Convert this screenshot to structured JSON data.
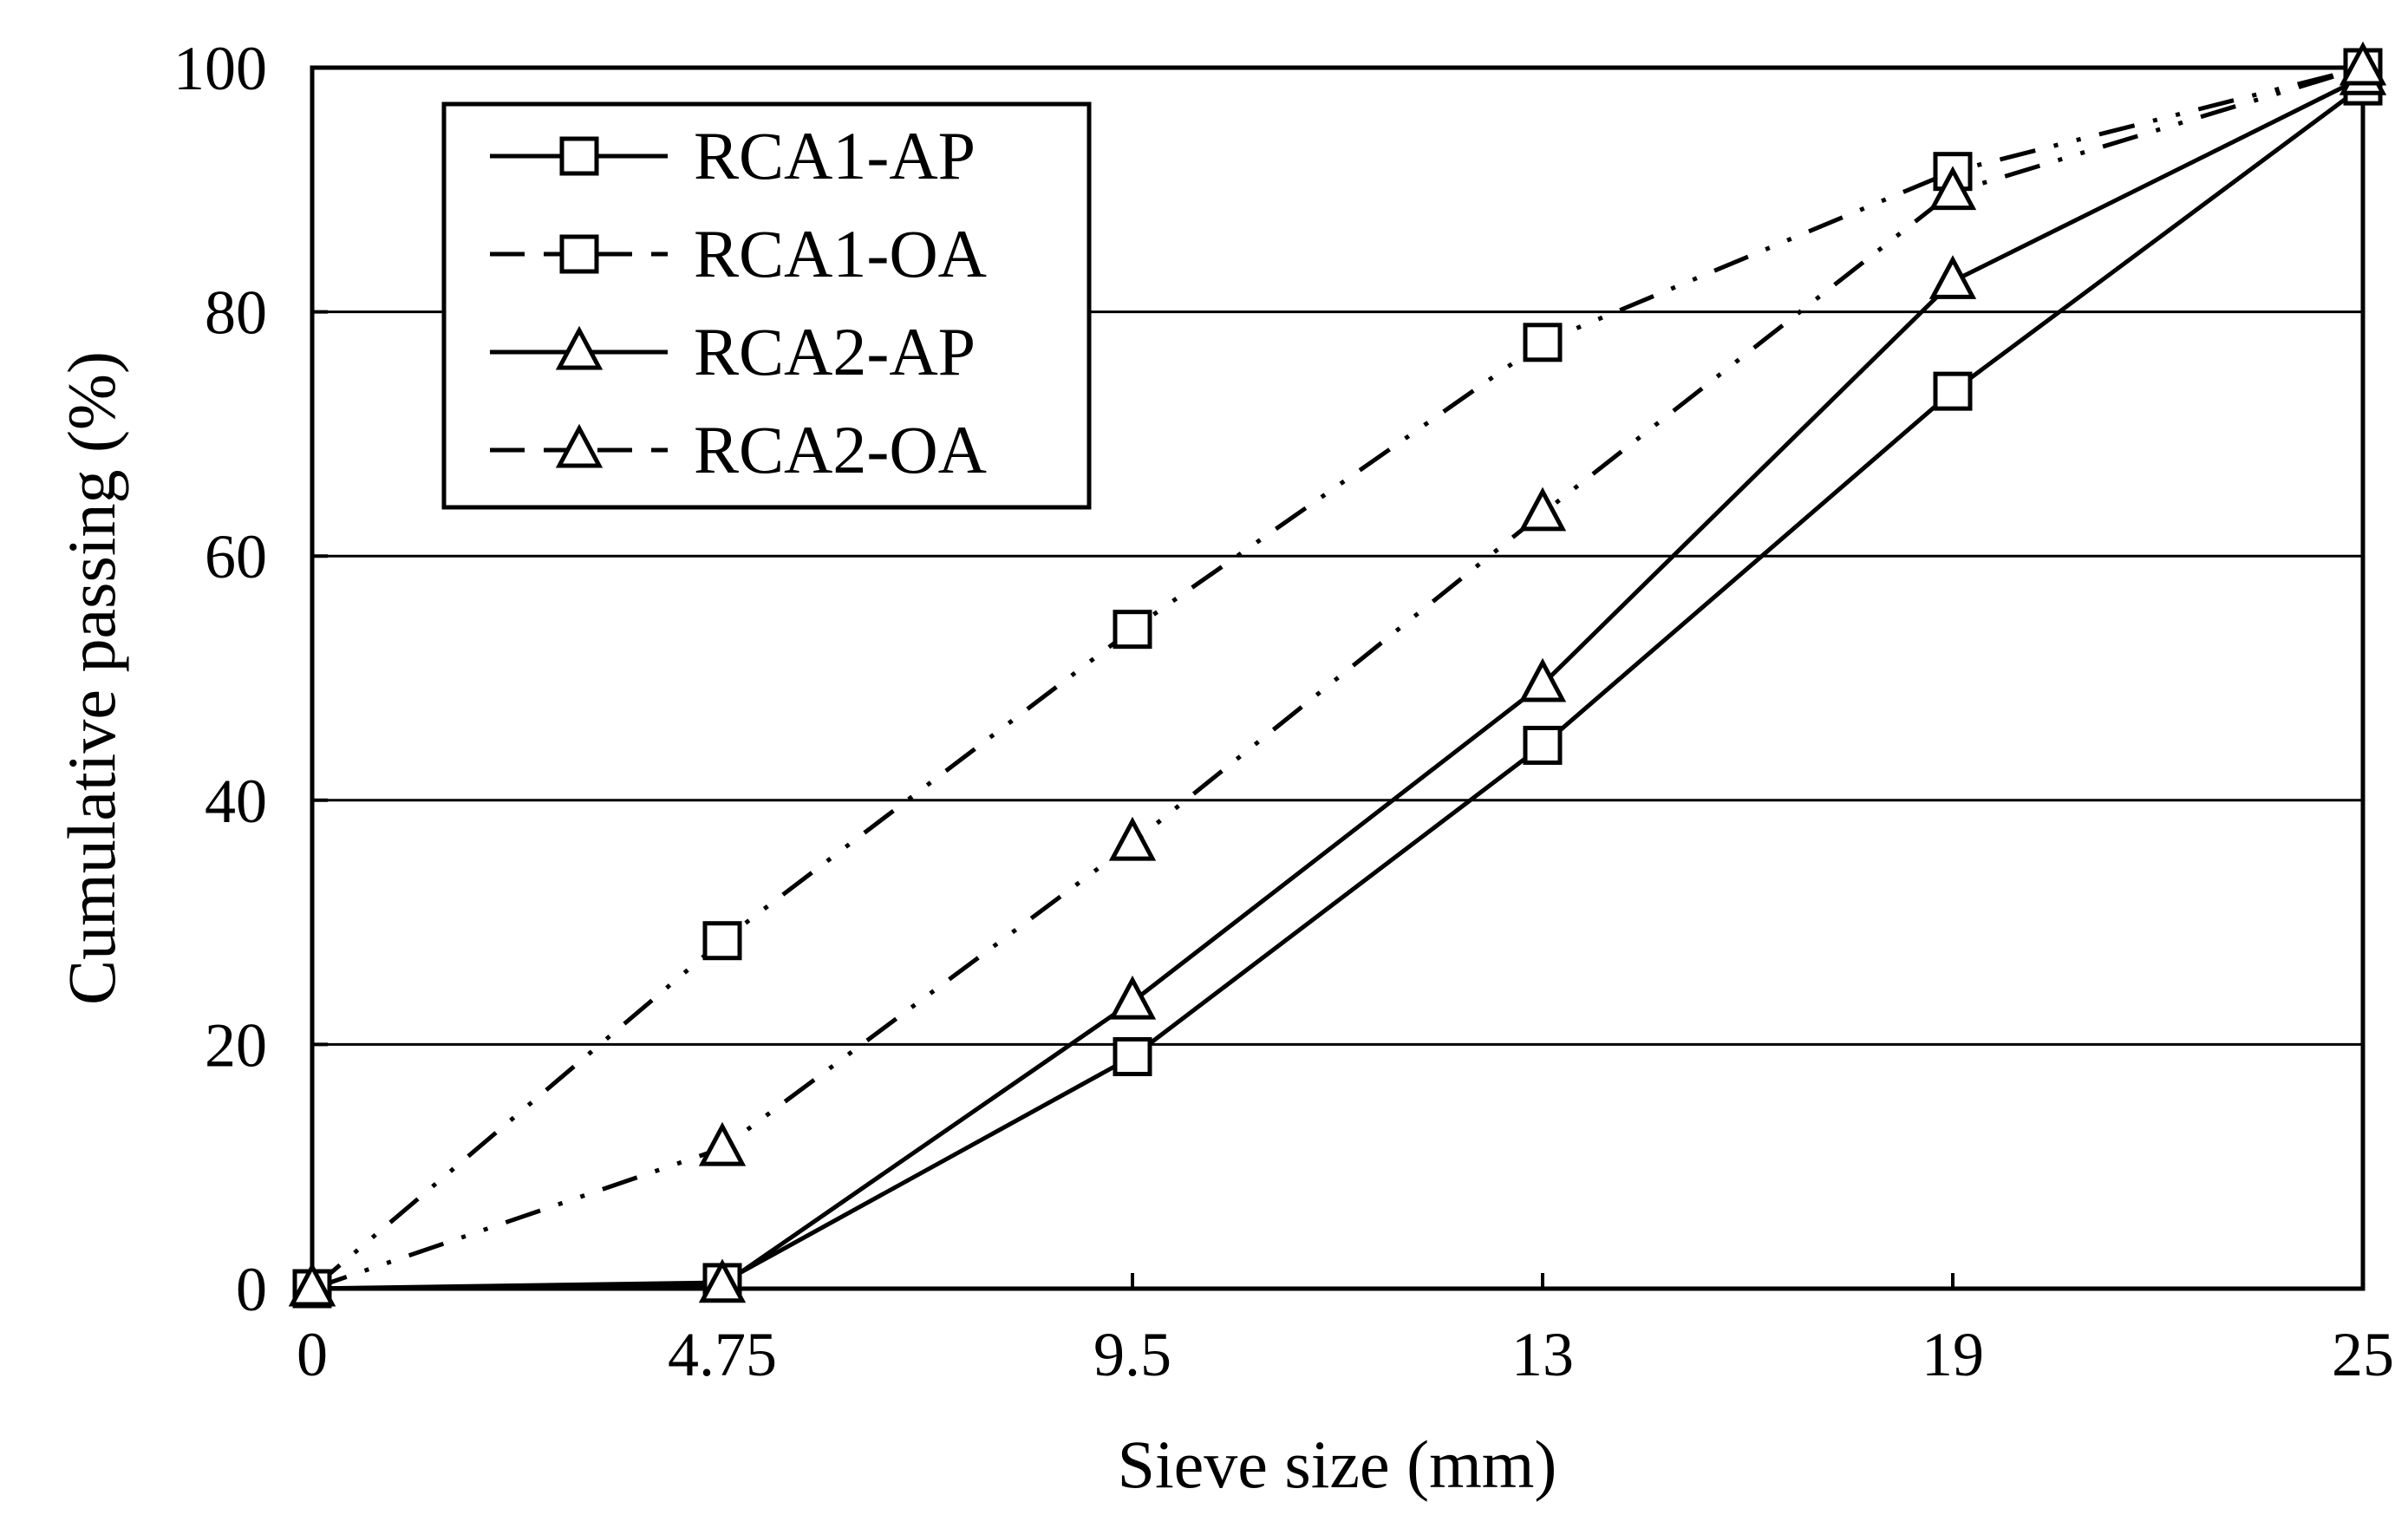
{
  "chart_data": {
    "type": "line",
    "title": "",
    "xlabel": "Sieve size (mm)",
    "ylabel": "Cumulative passing (%)",
    "categories": [
      "0",
      "4.75",
      "9.5",
      "13",
      "19",
      "25"
    ],
    "ylim": [
      0,
      100
    ],
    "yticks": [
      "0",
      "20",
      "40",
      "60",
      "80",
      "100"
    ],
    "ytick_values": [
      0,
      20,
      40,
      60,
      80,
      100
    ],
    "grid": "horizontal",
    "legend_position": "top-left",
    "series": [
      {
        "name": "RCA1-AP",
        "marker": "square",
        "line": "solid",
        "values": [
          0,
          0.5,
          19,
          44.5,
          73.5,
          98.5
        ]
      },
      {
        "name": "RCA1-OA",
        "marker": "square",
        "line": "dash-dot-dot",
        "values": [
          0,
          28.5,
          54,
          77.5,
          91.5,
          100
        ]
      },
      {
        "name": "RCA2-AP",
        "marker": "triangle",
        "line": "solid",
        "values": [
          0,
          0.3,
          23.5,
          49.5,
          82.5,
          99.2
        ]
      },
      {
        "name": "RCA2-OA",
        "marker": "triangle",
        "line": "dash-dot-dot",
        "values": [
          0,
          11.5,
          36.5,
          63.5,
          89.8,
          100
        ]
      }
    ],
    "legend_labels": [
      "RCA1-AP",
      "RCA1-OA",
      "RCA2-AP",
      "RCA2-OA"
    ]
  }
}
